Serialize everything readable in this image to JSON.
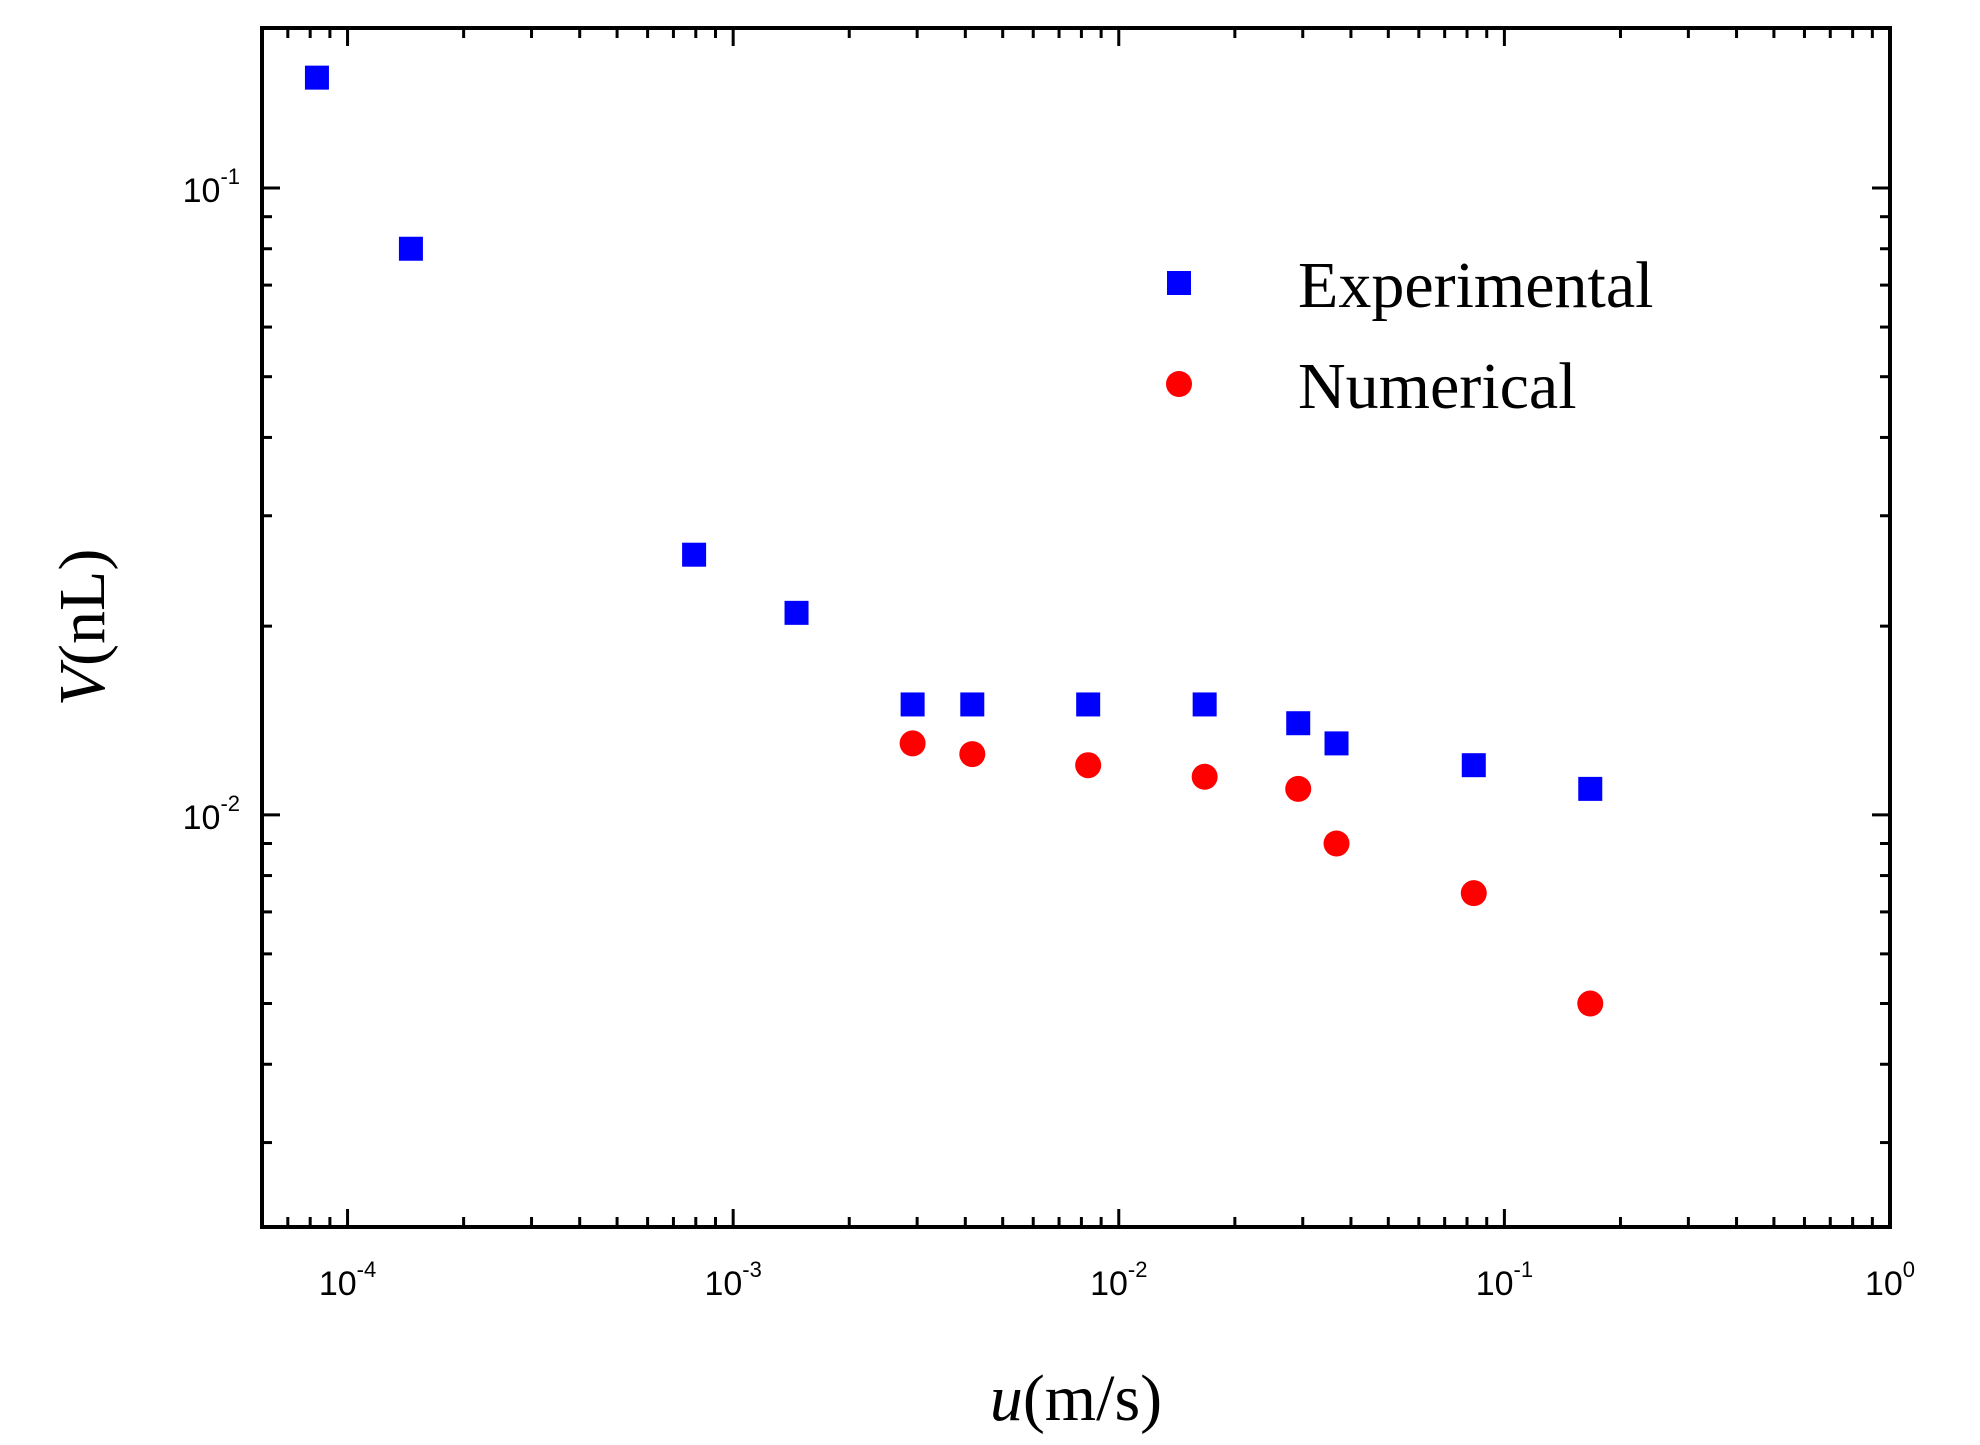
{
  "chart_data": {
    "type": "scatter",
    "title": "",
    "xlabel": {
      "symbol": "u",
      "unit": "(m/s)"
    },
    "ylabel": {
      "symbol": "V",
      "unit": "(nL)"
    },
    "xscale": "log",
    "yscale": "log",
    "xlim": [
      6e-05,
      1
    ],
    "ylim": [
      0.0022,
      0.18
    ],
    "x_ticks": [
      {
        "value": 0.0001,
        "base": "10",
        "exp": "-4"
      },
      {
        "value": 0.001,
        "base": "10",
        "exp": "-3"
      },
      {
        "value": 0.01,
        "base": "10",
        "exp": "-2"
      },
      {
        "value": 0.1,
        "base": "10",
        "exp": "-1"
      },
      {
        "value": 1,
        "base": "10",
        "exp": "0"
      }
    ],
    "y_ticks": [
      {
        "value": 0.01,
        "base": "10",
        "exp": "-2"
      },
      {
        "value": 0.1,
        "base": "10",
        "exp": "-1"
      }
    ],
    "grid": false,
    "legend_position": "top-right",
    "series": [
      {
        "name": "Experimental",
        "marker": "square",
        "color": "#0000ff",
        "x": [
          8.33e-05,
          0.000146,
          0.000792,
          0.00146,
          0.00292,
          0.00417,
          0.00833,
          0.0167,
          0.0292,
          0.0367,
          0.0833,
          0.167
        ],
        "y": [
          0.15,
          0.08,
          0.026,
          0.021,
          0.015,
          0.015,
          0.015,
          0.015,
          0.014,
          0.013,
          0.012,
          0.011
        ]
      },
      {
        "name": "Numerical",
        "marker": "circle",
        "color": "#ff0000",
        "x": [
          0.00292,
          0.00417,
          0.00833,
          0.0167,
          0.0292,
          0.0367,
          0.0833,
          0.167
        ],
        "y": [
          0.013,
          0.0125,
          0.012,
          0.0115,
          0.011,
          0.009,
          0.0075,
          0.005
        ]
      }
    ]
  }
}
